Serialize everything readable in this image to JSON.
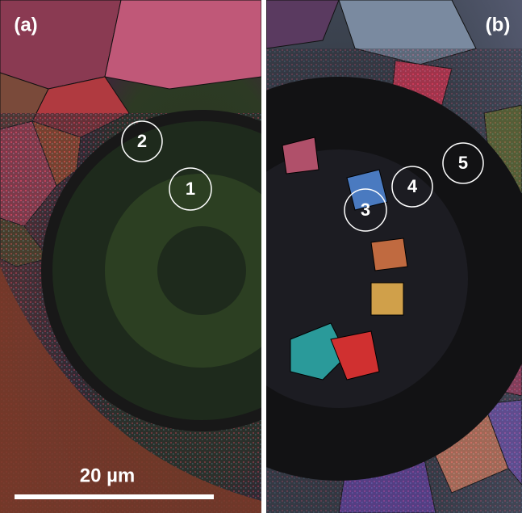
{
  "panels": [
    {
      "label": "(a)"
    },
    {
      "label": "(b)"
    }
  ],
  "markers": [
    {
      "label": "1"
    },
    {
      "label": "2"
    },
    {
      "label": "3"
    },
    {
      "label": "4"
    },
    {
      "label": "5"
    }
  ],
  "scale_bar": {
    "label": "20 µm"
  }
}
